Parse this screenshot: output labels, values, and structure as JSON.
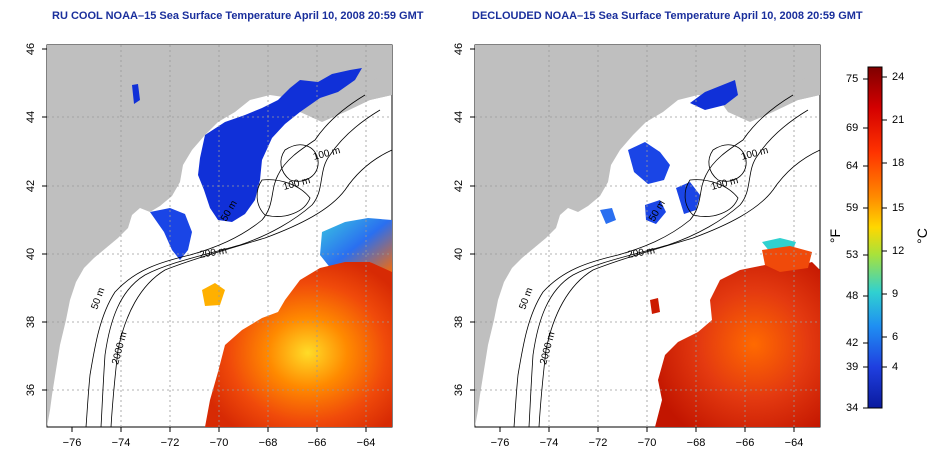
{
  "panels": [
    {
      "id": "left",
      "title": "RU COOL NOAA–15 Sea Surface Temperature April 10, 2008 20:59 GMT"
    },
    {
      "id": "right",
      "title": "DECLOUDED NOAA–15 Sea Surface Temperature April 10, 2008 20:59 GMT"
    }
  ],
  "axes": {
    "x_ticks": [
      "−76",
      "−74",
      "−72",
      "−70",
      "−68",
      "−66",
      "−64"
    ],
    "y_ticks": [
      "36",
      "38",
      "40",
      "42",
      "44",
      "46"
    ]
  },
  "contour_labels": {
    "left": [
      "100 m",
      "100 m",
      "50 m",
      "200 m",
      "50 m",
      "2000 m"
    ],
    "right": [
      "100 m",
      "100 m",
      "50 m",
      "200 m",
      "50 m",
      "2000 m"
    ]
  },
  "colorbar": {
    "fahrenheit_ticks": [
      "75",
      "69",
      "64",
      "59",
      "53",
      "48",
      "42",
      "39",
      "34"
    ],
    "celsius_ticks": [
      "24",
      "21",
      "18",
      "15",
      "12",
      "9",
      "6",
      "4"
    ],
    "fahrenheit_unit": "°F",
    "celsius_unit": "°C",
    "colors": [
      "#7f0000",
      "#d40000",
      "#ff3300",
      "#ff8a00",
      "#ffd700",
      "#a8e23b",
      "#30d1d0",
      "#1f8ff2",
      "#1f3fe0",
      "#0a1a9e"
    ]
  },
  "colors": {
    "land": "#bfbfbf",
    "cold": "#1030d8",
    "warm": "#e43a10",
    "hot": "#cc1a00",
    "gridline": "#9a9a9a",
    "title": "#1a2f9c"
  }
}
